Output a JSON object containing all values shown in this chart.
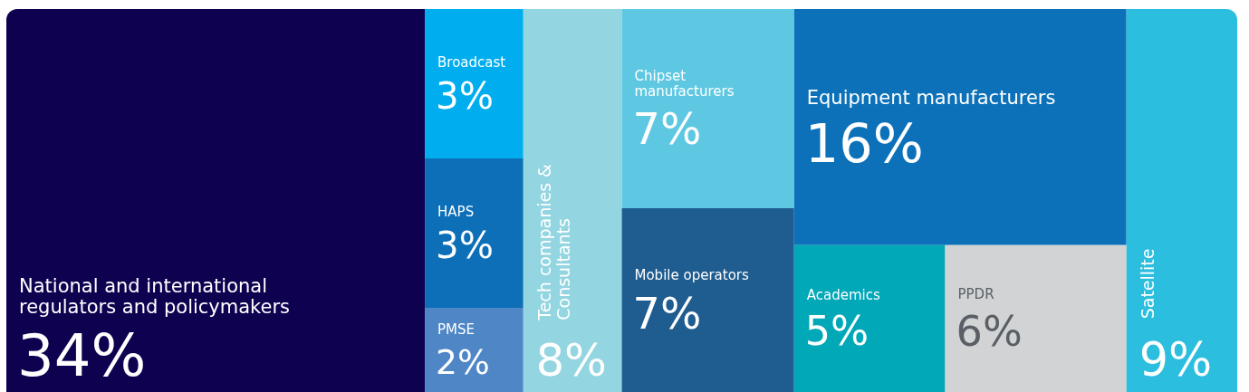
{
  "chart_data": {
    "type": "other",
    "categories": [
      "National and international regulators and policymakers",
      "Broadcast",
      "HAPS",
      "PMSE",
      "Tech companies & Consultants",
      "Chipset manufacturers",
      "Mobile operators",
      "Equipment manufacturers",
      "Academics",
      "PPDR",
      "Satellite"
    ],
    "values": [
      34,
      3,
      3,
      2,
      8,
      7,
      7,
      16,
      5,
      6,
      9
    ],
    "value_labels": [
      "34%",
      "3%",
      "3%",
      "2%",
      "8%",
      "7%",
      "7%",
      "16%",
      "5%",
      "6%",
      "9%"
    ],
    "colors": [
      "#0e0150",
      "#00aeef",
      "#0c6fb7",
      "#4f86c6",
      "#93d5e0",
      "#5ec8e2",
      "#1f5c8f",
      "#0c71b8",
      "#00a8b8",
      "#d1d3d4",
      "#2cbede"
    ]
  }
}
